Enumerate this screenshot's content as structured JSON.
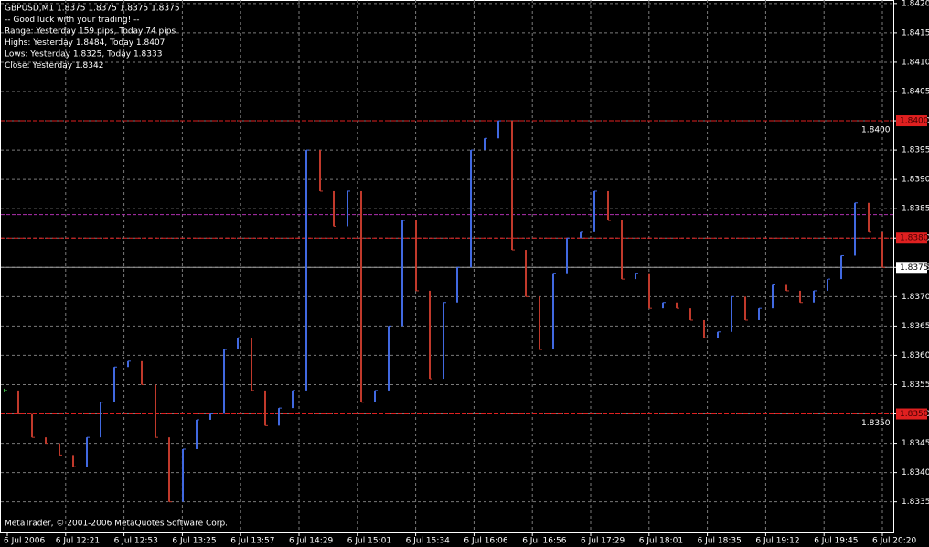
{
  "chart_data": {
    "type": "bar",
    "info_lines": [
      "GBPUSD,M1  1.8375 1.8375 1.8375 1.8375",
      "-- Good luck with your trading! --",
      "Range: Yesterday 159 pips, Today 74 pips",
      "Highs: Yesterday 1.8484, Today 1.8407",
      "Lows:  Yesterday 1.8325, Today 1.8333",
      "Close: Yesterday 1.8342"
    ],
    "footer": "MetaTrader, © 2001-2006 MetaQuotes Software Corp.",
    "x_labels": [
      "6 Jul 2006",
      "6 Jul 12:21",
      "6 Jul 12:53",
      "6 Jul 13:25",
      "6 Jul 13:57",
      "6 Jul 14:29",
      "6 Jul 15:01",
      "6 Jul 15:34",
      "6 Jul 16:06",
      "6 Jul 16:56",
      "6 Jul 17:29",
      "6 Jul 18:01",
      "6 Jul 18:35",
      "6 Jul 19:12",
      "6 Jul 19:45",
      "6 Jul 20:20"
    ],
    "series": [
      {
        "up_color": "#4169e1",
        "down_color": "#c0392b",
        "flat_color": "#3cb043",
        "values": [
          1.8354,
          1.835,
          1.8346,
          1.8345,
          1.8343,
          1.8341,
          1.8346,
          1.8352,
          1.8358,
          1.8359,
          1.8355,
          1.8346,
          1.8335,
          1.8344,
          1.8349,
          1.835,
          1.8361,
          1.8363,
          1.8354,
          1.8348,
          1.8351,
          1.8354,
          1.8395,
          1.8388,
          1.8382,
          1.8388,
          1.8352,
          1.8354,
          1.8365,
          1.8383,
          1.8371,
          1.8356,
          1.8369,
          1.8375,
          1.8395,
          1.8397,
          1.84,
          1.8378,
          1.837,
          1.8361,
          1.8374,
          1.838,
          1.8381,
          1.8388,
          1.8383,
          1.8373,
          1.8374,
          1.8368,
          1.8369,
          1.8368,
          1.8366,
          1.8363,
          1.8364,
          1.837,
          1.8366,
          1.8368,
          1.8372,
          1.8371,
          1.8369,
          1.8371,
          1.8373,
          1.8377,
          1.8386,
          1.8381,
          1.8375
        ]
      }
    ],
    "ylim": [
      1.83298,
      1.84206
    ],
    "yticks": [
      1.8335,
      {
        "value": 1.834,
        "label": "1.8340"
      },
      1.8345,
      {
        "value": 1.835,
        "label": "1.8350"
      },
      1.8355,
      {
        "value": 1.836,
        "label": "1.8360"
      },
      1.8365,
      {
        "value": 1.837,
        "label": "1.8370"
      },
      1.8375,
      {
        "value": 1.838,
        "label": "1.8380"
      },
      1.8385,
      {
        "value": 1.839,
        "label": "1.8390"
      },
      1.8395,
      {
        "value": 1.84,
        "label": "1.8400"
      },
      1.8405,
      {
        "value": 1.841,
        "label": "1.8410"
      },
      1.8415,
      {
        "value": 1.842,
        "label": "1.8420"
      }
    ],
    "grid": true,
    "levels": [
      {
        "value": 1.84,
        "label": "1.8400",
        "color": "#e02020",
        "show_inline": true
      },
      {
        "value": 1.838,
        "label": "1.8380",
        "color": "#e02020",
        "show_inline": false
      },
      {
        "value": 1.835,
        "label": "1.8350",
        "color": "#e02020",
        "show_inline": true
      }
    ],
    "current": {
      "value": 1.8375,
      "label": "1.8375",
      "color": "#a0a0a0"
    },
    "magenta_line": {
      "value": 1.8384,
      "color": "#b030b0"
    }
  }
}
